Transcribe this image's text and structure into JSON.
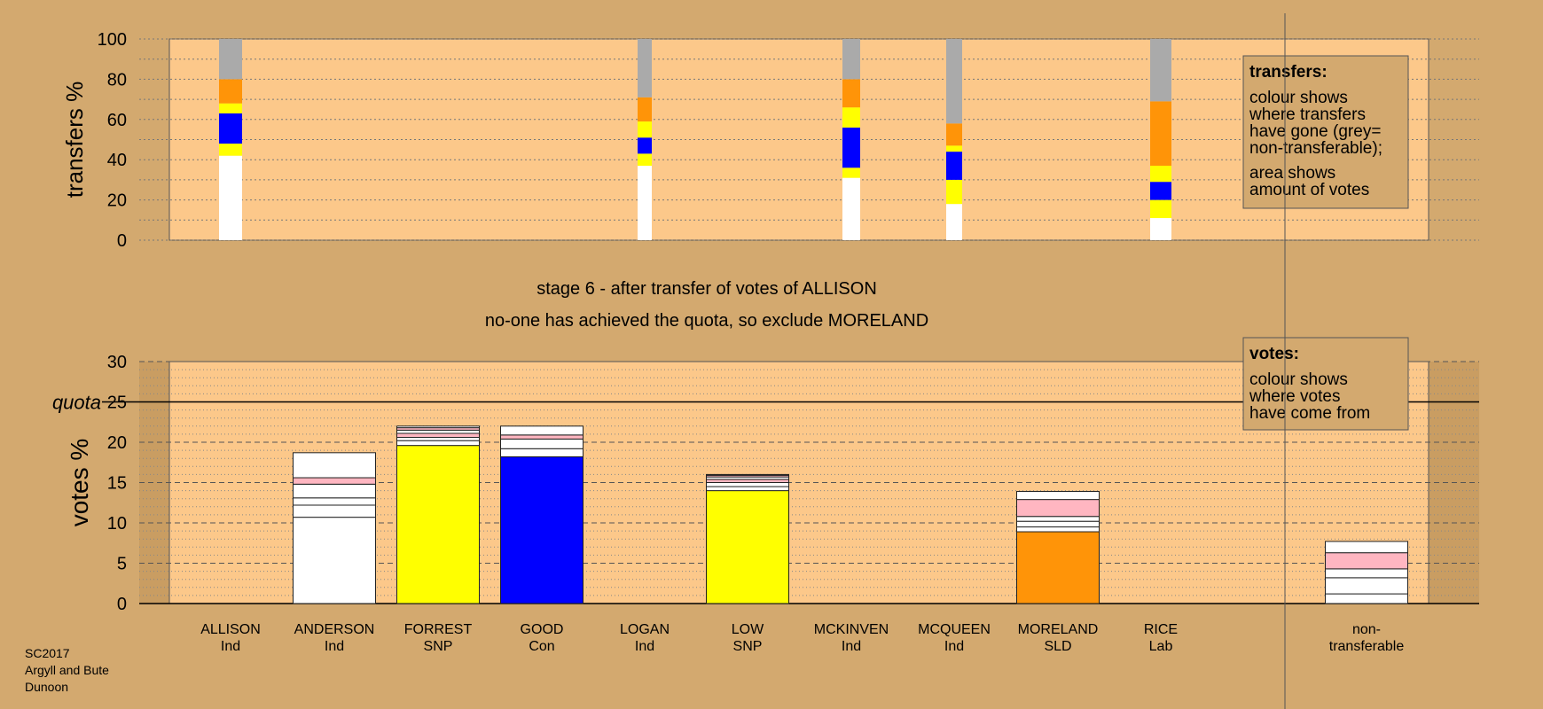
{
  "page": {
    "stage_title": "stage 6 - after transfer of votes of ALLISON",
    "stage_note": "no-one has achieved the quota, so exclude MORELAND",
    "footer_lines": [
      "SC2017",
      "Argyll and Bute",
      "Dunoon"
    ]
  },
  "colors": {
    "background": "#d3a96f",
    "plot_bg": "#fcc88a",
    "white": "#ffffff",
    "yellow": "#ffff00",
    "blue": "#0000ff",
    "orange": "#ff9408",
    "pink": "#ffb6c1",
    "grey": "#aaaaaa"
  },
  "candidates": [
    {
      "name": "ALLISON",
      "party": "Ind"
    },
    {
      "name": "ANDERSON",
      "party": "Ind"
    },
    {
      "name": "FORREST",
      "party": "SNP"
    },
    {
      "name": "GOOD",
      "party": "Con"
    },
    {
      "name": "LOGAN",
      "party": "Ind"
    },
    {
      "name": "LOW",
      "party": "SNP"
    },
    {
      "name": "MCKINVEN",
      "party": "Ind"
    },
    {
      "name": "MCQUEEN",
      "party": "Ind"
    },
    {
      "name": "MORELAND",
      "party": "SLD"
    },
    {
      "name": "RICE",
      "party": "Lab"
    },
    {
      "name": "non-",
      "party": "transferable"
    }
  ],
  "chart_data": [
    {
      "type": "bar",
      "stacked": true,
      "ylabel": "transfers %",
      "ylim": [
        0,
        100
      ],
      "yticks": [
        0,
        20,
        40,
        60,
        80,
        100
      ],
      "legend": {
        "title": "transfers:",
        "lines": [
          "colour shows",
          "where transfers",
          "have gone (grey=",
          "non-transferable);",
          "area shows",
          "amount of votes"
        ],
        "placement": "top-right"
      },
      "stacks": [
        {
          "candidate": "ALLISON",
          "segments": [
            {
              "color": "white",
              "value": 42
            },
            {
              "color": "yellow",
              "value": 6
            },
            {
              "color": "blue",
              "value": 15
            },
            {
              "color": "yellow",
              "value": 5
            },
            {
              "color": "orange",
              "value": 12
            },
            {
              "color": "grey",
              "value": 20
            }
          ]
        },
        {
          "candidate": "LOGAN",
          "segments": [
            {
              "color": "white",
              "value": 37
            },
            {
              "color": "yellow",
              "value": 6
            },
            {
              "color": "blue",
              "value": 8
            },
            {
              "color": "yellow",
              "value": 8
            },
            {
              "color": "orange",
              "value": 12
            },
            {
              "color": "grey",
              "value": 29
            }
          ]
        },
        {
          "candidate": "MCKINVEN",
          "segments": [
            {
              "color": "white",
              "value": 31
            },
            {
              "color": "yellow",
              "value": 5
            },
            {
              "color": "blue",
              "value": 20
            },
            {
              "color": "yellow",
              "value": 10
            },
            {
              "color": "orange",
              "value": 14
            },
            {
              "color": "grey",
              "value": 20
            }
          ]
        },
        {
          "candidate": "MCQUEEN",
          "segments": [
            {
              "color": "white",
              "value": 18
            },
            {
              "color": "yellow",
              "value": 12
            },
            {
              "color": "blue",
              "value": 14
            },
            {
              "color": "yellow",
              "value": 3
            },
            {
              "color": "orange",
              "value": 11
            },
            {
              "color": "grey",
              "value": 42
            }
          ]
        },
        {
          "candidate": "RICE",
          "segments": [
            {
              "color": "white",
              "value": 11
            },
            {
              "color": "yellow",
              "value": 9
            },
            {
              "color": "blue",
              "value": 9
            },
            {
              "color": "yellow",
              "value": 8
            },
            {
              "color": "orange",
              "value": 32
            },
            {
              "color": "grey",
              "value": 31
            }
          ]
        }
      ]
    },
    {
      "type": "bar",
      "stacked": true,
      "ylabel": "votes %",
      "ylim": [
        0,
        30
      ],
      "yticks": [
        0,
        5,
        10,
        15,
        20,
        25,
        30
      ],
      "quota": 25,
      "quota_label": "quota",
      "legend": {
        "title": "votes:",
        "lines": [
          "colour shows",
          "where votes",
          "have come from"
        ],
        "placement": "top-right"
      },
      "stacks": [
        {
          "candidate": "ALLISON",
          "segments": []
        },
        {
          "candidate": "ANDERSON",
          "segments": [
            {
              "color": "white",
              "value": 10.7
            },
            {
              "color": "white",
              "value": 1.5
            },
            {
              "color": "white",
              "value": 0.9
            },
            {
              "color": "white",
              "value": 1.7
            },
            {
              "color": "pink",
              "value": 0.8
            },
            {
              "color": "white",
              "value": 3.1
            }
          ]
        },
        {
          "candidate": "FORREST",
          "segments": [
            {
              "color": "yellow",
              "value": 19.6
            },
            {
              "color": "white",
              "value": 0.6
            },
            {
              "color": "white",
              "value": 0.4
            },
            {
              "color": "pink",
              "value": 0.5
            },
            {
              "color": "white",
              "value": 0.4
            },
            {
              "color": "pink",
              "value": 0.3
            },
            {
              "color": "white",
              "value": 0.2
            }
          ]
        },
        {
          "candidate": "GOOD",
          "segments": [
            {
              "color": "blue",
              "value": 18.2
            },
            {
              "color": "white",
              "value": 1.0
            },
            {
              "color": "white",
              "value": 1.2
            },
            {
              "color": "pink",
              "value": 0.5
            },
            {
              "color": "white",
              "value": 1.1
            }
          ]
        },
        {
          "candidate": "LOGAN",
          "segments": []
        },
        {
          "candidate": "LOW",
          "segments": [
            {
              "color": "yellow",
              "value": 14.0
            },
            {
              "color": "white",
              "value": 0.5
            },
            {
              "color": "white",
              "value": 0.5
            },
            {
              "color": "pink",
              "value": 0.4
            },
            {
              "color": "white",
              "value": 0.3
            },
            {
              "color": "pink",
              "value": 0.2
            },
            {
              "color": "white",
              "value": 0.1
            }
          ]
        },
        {
          "candidate": "MCKINVEN",
          "segments": []
        },
        {
          "candidate": "MCQUEEN",
          "segments": []
        },
        {
          "candidate": "MORELAND",
          "segments": [
            {
              "color": "orange",
              "value": 8.9
            },
            {
              "color": "white",
              "value": 0.6
            },
            {
              "color": "white",
              "value": 0.7
            },
            {
              "color": "white",
              "value": 0.6
            },
            {
              "color": "pink",
              "value": 2.1
            },
            {
              "color": "white",
              "value": 1.0
            }
          ]
        },
        {
          "candidate": "RICE",
          "segments": []
        },
        {
          "candidate": "non-transferable",
          "segments": [
            {
              "color": "white",
              "value": 1.2
            },
            {
              "color": "white",
              "value": 2.0
            },
            {
              "color": "white",
              "value": 1.1
            },
            {
              "color": "pink",
              "value": 2.0
            },
            {
              "color": "white",
              "value": 1.4
            }
          ]
        }
      ]
    }
  ]
}
